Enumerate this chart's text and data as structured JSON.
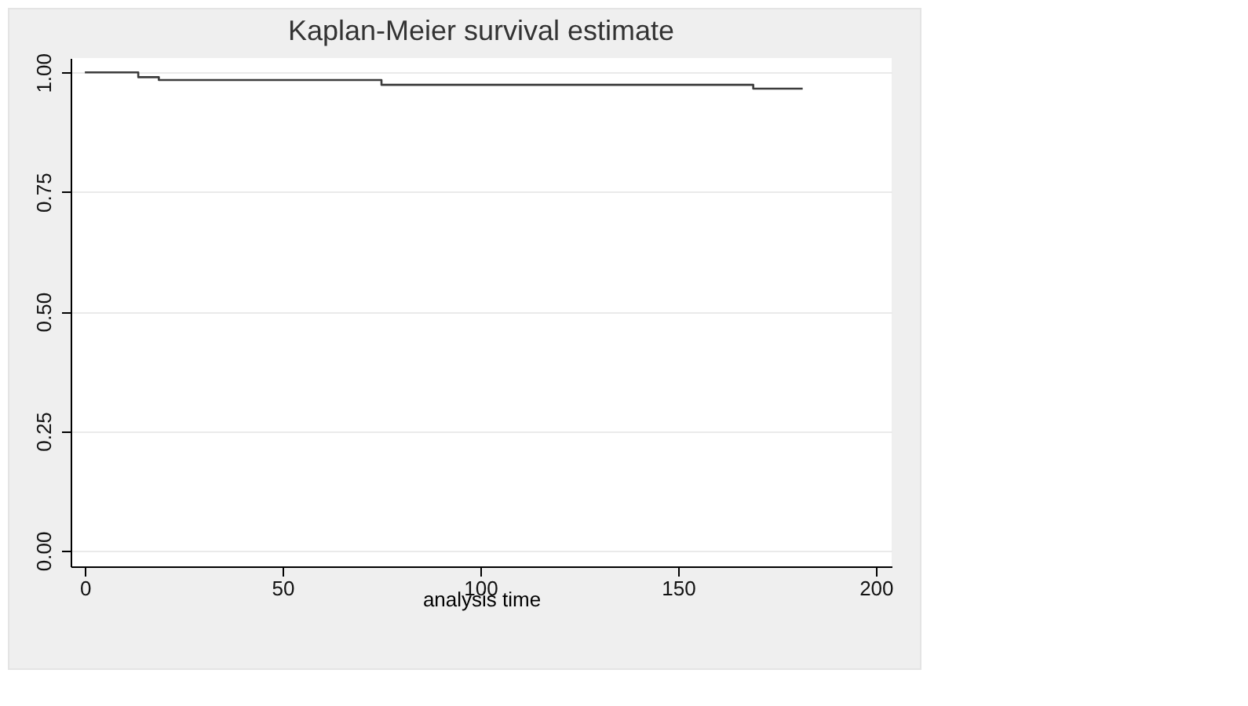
{
  "chart_data": {
    "type": "step",
    "title": "Kaplan-Meier survival estimate",
    "xlabel": "analysis time",
    "x": [
      0,
      13.5,
      18.7,
      75,
      169,
      181.5
    ],
    "series": [
      {
        "color": "#3c3c3c",
        "values": [
          1,
          0.99,
          0.984,
          0.974,
          0.966,
          0.966
        ]
      }
    ],
    "xlim": [
      -3.6,
      204
    ],
    "xticks": [
      0,
      50,
      100,
      150,
      200
    ],
    "ylim": [
      -0.033,
      1.03
    ],
    "yticks": [
      {
        "value": 0,
        "label": "0.00"
      },
      {
        "value": 0.25,
        "label": "0.25"
      },
      {
        "value": 0.5,
        "label": "0.50"
      },
      {
        "value": 0.75,
        "label": "0.75"
      },
      {
        "value": 1,
        "label": "1.00"
      }
    ],
    "grid": "y"
  }
}
